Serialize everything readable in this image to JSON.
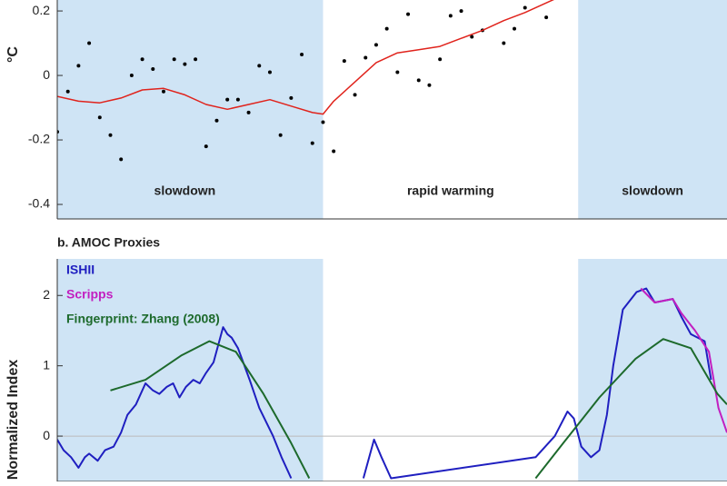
{
  "chart_data": [
    {
      "type": "scatter",
      "ylabel": "°C",
      "xlim": [
        1950,
        2013
      ],
      "ylim": [
        -0.445,
        0.234
      ],
      "yticks": [
        -0.4,
        -0.2,
        0,
        0.2
      ],
      "shading": [
        [
          1950,
          1975
        ],
        [
          1999,
          2013
        ]
      ],
      "shade_color": "#cfe4f5",
      "annotations": [
        {
          "text": "slowdown",
          "x": 1962
        },
        {
          "text": "rapid warming",
          "x": 1987
        },
        {
          "text": "slowdown",
          "x": 2006
        }
      ],
      "annotation_y": -0.36,
      "series": [
        {
          "mode": "markers",
          "color": "#000000",
          "x": [
            1950,
            1951,
            1952,
            1953,
            1954,
            1955,
            1956,
            1957,
            1958,
            1959,
            1960,
            1961,
            1962,
            1963,
            1964,
            1965,
            1966,
            1967,
            1968,
            1969,
            1970,
            1971,
            1972,
            1973,
            1974,
            1975,
            1976,
            1977,
            1978,
            1979,
            1980,
            1981,
            1982,
            1983,
            1984,
            1985,
            1986,
            1987,
            1988,
            1989,
            1990,
            1992,
            1993,
            1994,
            1996
          ],
          "values": [
            -0.175,
            -0.05,
            0.03,
            0.1,
            -0.13,
            -0.185,
            -0.26,
            0,
            0.05,
            0.02,
            -0.05,
            0.05,
            0.035,
            0.05,
            -0.22,
            -0.14,
            -0.075,
            -0.075,
            -0.115,
            0.03,
            0.01,
            -0.185,
            -0.07,
            0.065,
            -0.21,
            -0.145,
            -0.235,
            0.045,
            -0.06,
            0.055,
            0.095,
            0.145,
            0.01,
            0.19,
            -0.015,
            -0.03,
            0.05,
            0.185,
            0.2,
            0.12,
            0.14,
            0.1,
            0.145,
            0.21,
            0.18
          ]
        },
        {
          "mode": "lines",
          "color": "#e0231c",
          "x": [
            1950,
            1952,
            1954,
            1956,
            1958,
            1960,
            1962,
            1964,
            1966,
            1968,
            1970,
            1972,
            1974,
            1975,
            1976,
            1978,
            1980,
            1982,
            1984,
            1986,
            1988,
            1990,
            1992,
            1994,
            1996,
            1997
          ],
          "values": [
            -0.065,
            -0.08,
            -0.085,
            -0.07,
            -0.045,
            -0.04,
            -0.06,
            -0.09,
            -0.105,
            -0.09,
            -0.075,
            -0.095,
            -0.115,
            -0.12,
            -0.08,
            -0.02,
            0.04,
            0.07,
            0.08,
            0.09,
            0.115,
            0.14,
            0.17,
            0.195,
            0.225,
            0.24
          ]
        }
      ]
    },
    {
      "type": "line",
      "title": "b. AMOC Proxies",
      "ylabel": "Normalized Index",
      "xlim": [
        1950,
        2013
      ],
      "ylim": [
        -0.645,
        2.52
      ],
      "yticks": [
        0,
        1,
        2
      ],
      "shading": [
        [
          1950,
          1975
        ],
        [
          1999,
          2013
        ]
      ],
      "shade_color": "#cfe4f5",
      "series": [
        {
          "name": "ISHII",
          "color": "#1f1fc0",
          "x": [
            1950,
            1950.6,
            1951.3,
            1952,
            1952.6,
            1953,
            1953.8,
            1954.5,
            1955.3,
            1956,
            1956.6,
            1957.4,
            1958.3,
            1959,
            1959.6,
            1960.3,
            1960.9,
            1961.5,
            1962.1,
            1962.8,
            1963.4,
            1964,
            1964.7,
            1965.6,
            1966,
            1966.4,
            1967,
            1968.1,
            1969,
            1970.3,
            1971.1,
            1972,
            1978,
            1978.8,
            1979.8,
            1980.5,
            1981.4,
            1995,
            1996.8,
            1998,
            1998.6,
            1999.3,
            2000.2,
            2001,
            2001.7,
            2002.3,
            2003.2,
            2004.5,
            2005.4,
            2006.2,
            2007.9,
            2008.7,
            2009.6,
            2010.9,
            2011.5
          ],
          "values": [
            -0.05,
            -0.2,
            -0.3,
            -0.45,
            -0.3,
            -0.25,
            -0.35,
            -0.2,
            -0.15,
            0.05,
            0.3,
            0.45,
            0.75,
            0.65,
            0.6,
            0.7,
            0.75,
            0.55,
            0.7,
            0.8,
            0.75,
            0.9,
            1.05,
            1.55,
            1.45,
            1.4,
            1.25,
            0.8,
            0.4,
            0,
            -0.3,
            -0.6,
            null,
            -0.6,
            -0.05,
            -0.3,
            -0.6,
            -0.3,
            0,
            0.35,
            0.25,
            -0.15,
            -0.3,
            -0.2,
            0.3,
            1,
            1.8,
            2.05,
            2.1,
            1.9,
            1.95,
            1.7,
            1.45,
            1.35,
            0.8
          ]
        },
        {
          "name": "Scripps",
          "color": "#c21fc0",
          "x": [
            2004.9,
            2006.2,
            2007.9,
            2008.7,
            2010,
            2011.3,
            2012.2,
            2013
          ],
          "values": [
            2.1,
            1.9,
            1.95,
            1.75,
            1.5,
            1.2,
            0.4,
            0.05
          ]
        },
        {
          "name": "Fingerprint: Zhang (2008)",
          "color": "#1d6a2c",
          "x": [
            1955,
            1958.3,
            1961.7,
            1964.3,
            1966.8,
            1969.4,
            1972,
            1973.7,
            1990,
            1995,
            1997.6,
            2001,
            2004.4,
            2007,
            2009.6,
            2012.1,
            2013
          ],
          "values": [
            0.65,
            0.8,
            1.15,
            1.35,
            1.2,
            0.6,
            -0.1,
            -0.6,
            null,
            -0.6,
            -0.1,
            0.55,
            1.1,
            1.38,
            1.25,
            0.6,
            0.45
          ]
        }
      ]
    }
  ]
}
